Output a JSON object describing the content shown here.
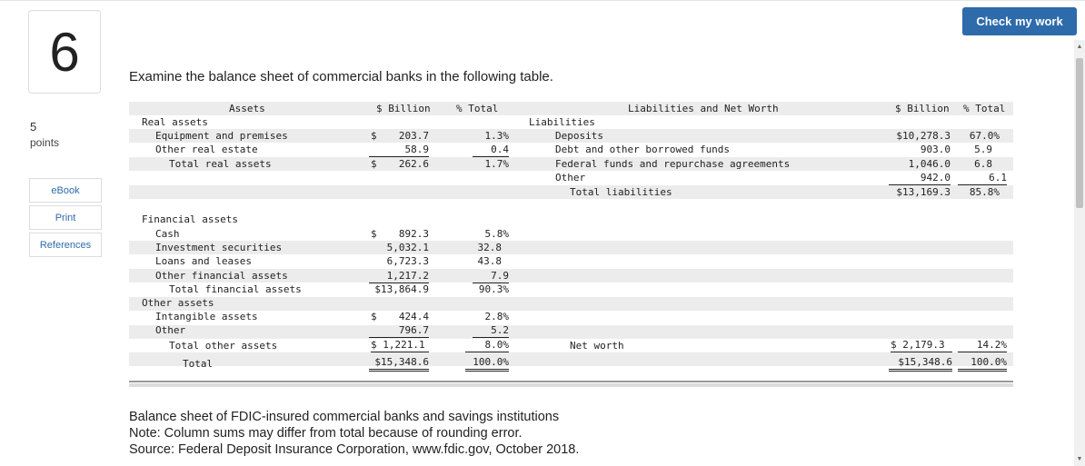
{
  "question": {
    "number": "6",
    "points_value": "5",
    "points_label": "points"
  },
  "side_links": [
    "eBook",
    "Print",
    "References"
  ],
  "check_button": "Check my work",
  "prompt": "Examine the balance sheet of commercial banks in the following table.",
  "table": {
    "headers": {
      "assets": "Assets",
      "billion": "$ Billion",
      "total": "% Total",
      "liabilities": "Liabilities and Net Worth",
      "billion2": "$ Billion",
      "total2": "% Total"
    },
    "assets": {
      "real_assets": "Real assets",
      "equipment": {
        "label": "Equipment and premises",
        "dollar": "$",
        "billion": "203.7",
        "pct": "1.3%"
      },
      "other_real": {
        "label": "Other real estate",
        "billion": "58.9",
        "pct": "0.4"
      },
      "total_real": {
        "label": "Total real assets",
        "dollar": "$",
        "billion": "262.6",
        "pct": "1.7%"
      },
      "financial_assets": "Financial assets",
      "cash": {
        "label": "Cash",
        "dollar": "$",
        "billion": "892.3",
        "pct": "5.8%"
      },
      "investment": {
        "label": "Investment securities",
        "billion": "5,032.1",
        "pct": "32.8"
      },
      "loans": {
        "label": "Loans and leases",
        "billion": "6,723.3",
        "pct": "43.8"
      },
      "other_fin": {
        "label": "Other financial assets",
        "billion": "1,217.2",
        "pct": "7.9"
      },
      "total_fin": {
        "label": "Total financial assets",
        "billion": "$13,864.9",
        "pct": "90.3%"
      },
      "other_assets": "Other assets",
      "intangible": {
        "label": "Intangible assets",
        "dollar": "$",
        "billion": "424.4",
        "pct": "2.8%"
      },
      "other": {
        "label": "Other",
        "billion": "796.7",
        "pct": "5.2"
      },
      "total_other": {
        "label": "Total other assets",
        "billion": "$ 1,221.1",
        "pct": "8.0%"
      },
      "total": {
        "label": "Total",
        "billion": "$15,348.6",
        "pct": "100.0%"
      }
    },
    "liabilities": {
      "heading": "Liabilities",
      "deposits": {
        "label": "Deposits",
        "billion": "$10,278.3",
        "pct": "67.0%"
      },
      "debt": {
        "label": "Debt and other borrowed funds",
        "billion": "903.0",
        "pct": "5.9"
      },
      "fed": {
        "label": "Federal funds and repurchase agreements",
        "billion": "1,046.0",
        "pct": "6.8"
      },
      "other": {
        "label": "Other",
        "billion": "942.0",
        "pct": "6.1"
      },
      "total": {
        "label": "Total liabilities",
        "billion": "$13,169.3",
        "pct": "85.8%"
      },
      "net_worth": {
        "label": "Net worth",
        "billion": "$ 2,179.3",
        "pct": "14.2%"
      },
      "grand_total": {
        "billion": "$15,348.6",
        "pct": "100.0%"
      }
    }
  },
  "caption": {
    "line1": "Balance sheet of FDIC-insured commercial banks and savings institutions",
    "line2": "Note: Column sums may differ from total because of rounding error.",
    "line3": "Source: Federal Deposit Insurance Corporation, www.fdic.gov, October 2018."
  },
  "icons": {
    "scroll_up": "up-arrow-icon",
    "scroll_down": "down-arrow-icon"
  }
}
